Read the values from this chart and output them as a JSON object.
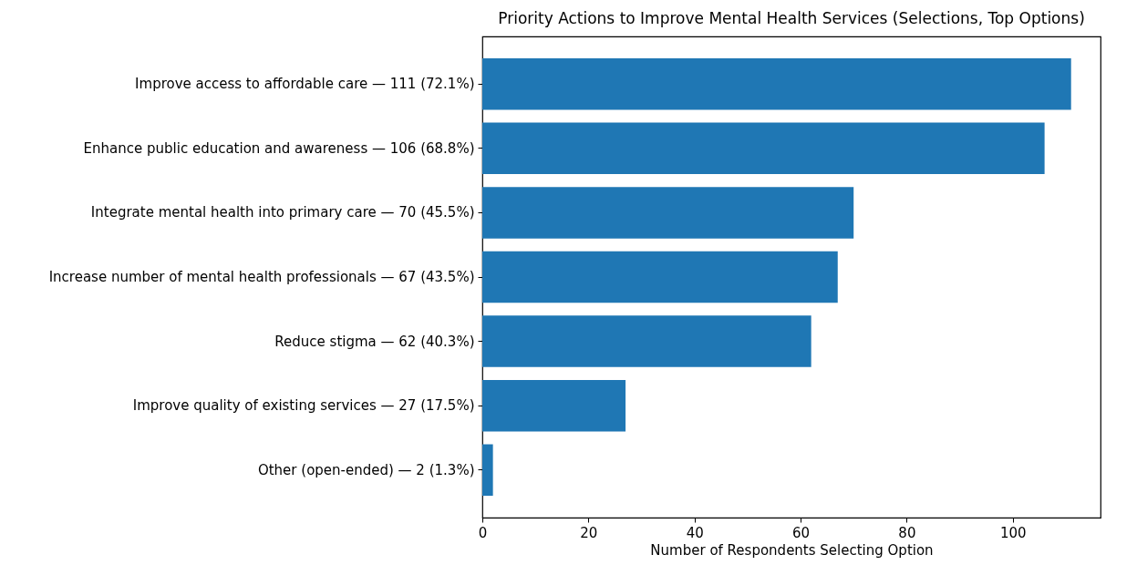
{
  "chart_data": {
    "type": "bar",
    "orientation": "horizontal",
    "title": "Priority Actions to Improve Mental Health Services (Selections, Top Options)",
    "xlabel": "Number of Respondents Selecting Option",
    "categories": [
      "Improve access to affordable care — 111 (72.1%)",
      "Enhance public education and awareness — 106 (68.8%)",
      "Integrate mental health into primary care — 70 (45.5%)",
      "Increase number of mental health professionals — 67 (43.5%)",
      "Reduce stigma — 62 (40.3%)",
      "Improve quality of existing services — 27 (17.5%)",
      "Other (open-ended) — 2 (1.3%)"
    ],
    "values": [
      111,
      106,
      70,
      67,
      62,
      27,
      2
    ],
    "color": "#1f77b4",
    "xlim": [
      0,
      116.55
    ],
    "xticks": [
      0,
      20,
      40,
      60,
      80,
      100
    ],
    "grid": false
  }
}
